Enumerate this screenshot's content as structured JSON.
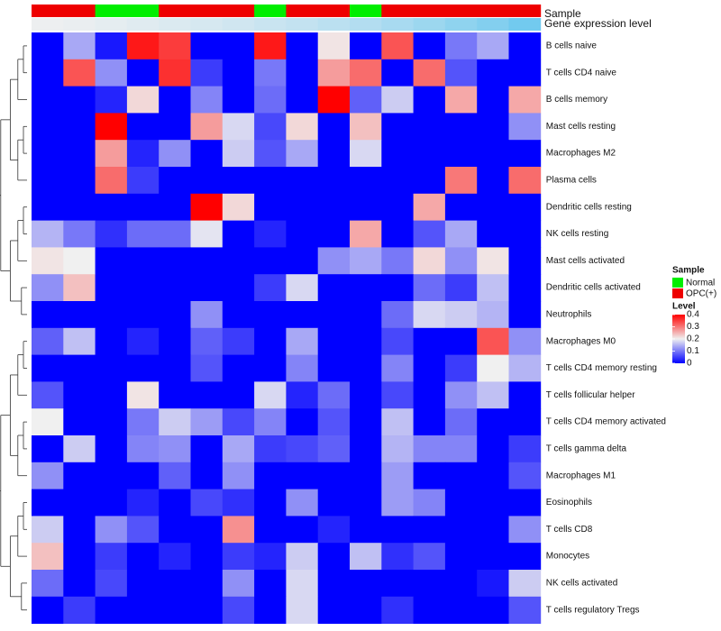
{
  "chart_data": {
    "type": "heatmap",
    "title": "",
    "annotation_rows": [
      "Sample",
      "Gene expression level"
    ],
    "sample_groups": [
      "OPC(+)",
      "OPC(+)",
      "Normal",
      "Normal",
      "OPC(+)",
      "OPC(+)",
      "OPC(+)",
      "Normal",
      "OPC(+)",
      "OPC(+)",
      "Normal",
      "OPC(+)",
      "OPC(+)",
      "OPC(+)",
      "OPC(+)",
      "OPC(+)"
    ],
    "expression_level": [
      0.02,
      0.04,
      0.07,
      0.1,
      0.13,
      0.16,
      0.2,
      0.24,
      0.28,
      0.33,
      0.38,
      0.45,
      0.52,
      0.6,
      0.68,
      0.78
    ],
    "rows": [
      "B cells naive",
      "T cells CD4 naive",
      "B cells memory",
      "Mast cells resting",
      "Macrophages M2",
      "Plasma cells",
      "Dendritic cells resting",
      "NK cells resting",
      "Mast cells activated",
      "Dendritic cells activated",
      "Neutrophils",
      "Macrophages M0",
      "T cells CD4 memory resting",
      "T cells follicular helper",
      "T cells CD4 memory activated",
      "T cells gamma delta",
      "Macrophages M1",
      "Eosinophils",
      "T cells CD8",
      "Monocytes",
      "NK cells activated",
      "T cells regulatory  Tregs"
    ],
    "values": [
      [
        0.0,
        0.14,
        0.02,
        0.38,
        0.35,
        0.0,
        0.0,
        0.38,
        0.0,
        0.21,
        0.0,
        0.33,
        0.0,
        0.1,
        0.14,
        0.0
      ],
      [
        0.0,
        0.33,
        0.12,
        0.0,
        0.36,
        0.05,
        0.0,
        0.1,
        0.0,
        0.27,
        0.31,
        0.0,
        0.31,
        0.07,
        0.0,
        0.0
      ],
      [
        0.0,
        0.0,
        0.03,
        0.22,
        0.0,
        0.11,
        0.0,
        0.09,
        0.0,
        0.4,
        0.08,
        0.17,
        0.0,
        0.26,
        0.0,
        0.26
      ],
      [
        0.0,
        0.0,
        0.4,
        0.0,
        0.0,
        0.27,
        0.18,
        0.06,
        0.22,
        0.0,
        0.24,
        0.0,
        0.0,
        0.0,
        0.0,
        0.12
      ],
      [
        0.0,
        0.0,
        0.27,
        0.03,
        0.12,
        0.0,
        0.17,
        0.07,
        0.14,
        0.0,
        0.18,
        0.0,
        0.0,
        0.0,
        0.0,
        0.0
      ],
      [
        0.0,
        0.0,
        0.31,
        0.05,
        0.0,
        0.0,
        0.0,
        0.0,
        0.0,
        0.0,
        0.0,
        0.0,
        0.0,
        0.3,
        0.0,
        0.31
      ],
      [
        0.0,
        0.0,
        0.0,
        0.0,
        0.0,
        0.4,
        0.22,
        0.0,
        0.0,
        0.0,
        0.0,
        0.0,
        0.26,
        0.0,
        0.0,
        0.0
      ],
      [
        0.15,
        0.1,
        0.04,
        0.09,
        0.09,
        0.19,
        0.0,
        0.03,
        0.0,
        0.0,
        0.26,
        0.0,
        0.07,
        0.14,
        0.0,
        0.0
      ],
      [
        0.21,
        0.2,
        0.0,
        0.0,
        0.0,
        0.0,
        0.0,
        0.0,
        0.0,
        0.12,
        0.14,
        0.1,
        0.22,
        0.12,
        0.21,
        0.0
      ],
      [
        0.12,
        0.24,
        0.0,
        0.0,
        0.0,
        0.0,
        0.0,
        0.05,
        0.18,
        0.0,
        0.0,
        0.0,
        0.09,
        0.05,
        0.16,
        0.0
      ],
      [
        0.0,
        0.0,
        0.0,
        0.0,
        0.0,
        0.12,
        0.0,
        0.0,
        0.0,
        0.0,
        0.0,
        0.09,
        0.18,
        0.17,
        0.15,
        0.0
      ],
      [
        0.08,
        0.16,
        0.0,
        0.03,
        0.0,
        0.08,
        0.05,
        0.0,
        0.14,
        0.0,
        0.0,
        0.06,
        0.0,
        0.0,
        0.33,
        0.12
      ],
      [
        0.0,
        0.0,
        0.0,
        0.0,
        0.0,
        0.07,
        0.0,
        0.0,
        0.11,
        0.0,
        0.0,
        0.11,
        0.0,
        0.05,
        0.2,
        0.15
      ],
      [
        0.07,
        0.0,
        0.0,
        0.21,
        0.0,
        0.0,
        0.0,
        0.18,
        0.03,
        0.09,
        0.0,
        0.06,
        0.0,
        0.12,
        0.16,
        0.0
      ],
      [
        0.2,
        0.0,
        0.0,
        0.1,
        0.17,
        0.13,
        0.06,
        0.11,
        0.0,
        0.07,
        0.0,
        0.16,
        0.0,
        0.09,
        0.0,
        0.0
      ],
      [
        0.0,
        0.17,
        0.0,
        0.11,
        0.12,
        0.0,
        0.14,
        0.05,
        0.06,
        0.08,
        0.0,
        0.15,
        0.11,
        0.11,
        0.0,
        0.05
      ],
      [
        0.12,
        0.0,
        0.0,
        0.0,
        0.08,
        0.0,
        0.12,
        0.0,
        0.0,
        0.0,
        0.0,
        0.13,
        0.0,
        0.0,
        0.0,
        0.07
      ],
      [
        0.0,
        0.0,
        0.0,
        0.03,
        0.0,
        0.06,
        0.04,
        0.0,
        0.12,
        0.0,
        0.0,
        0.13,
        0.11,
        0.0,
        0.0,
        0.0
      ],
      [
        0.17,
        0.0,
        0.12,
        0.07,
        0.0,
        0.0,
        0.28,
        0.0,
        0.0,
        0.03,
        0.0,
        0.0,
        0.0,
        0.0,
        0.0,
        0.12
      ],
      [
        0.24,
        0.0,
        0.05,
        0.0,
        0.03,
        0.0,
        0.05,
        0.03,
        0.17,
        0.0,
        0.16,
        0.04,
        0.07,
        0.0,
        0.0,
        0.0
      ],
      [
        0.09,
        0.0,
        0.06,
        0.0,
        0.0,
        0.0,
        0.12,
        0.0,
        0.18,
        0.0,
        0.0,
        0.0,
        0.0,
        0.0,
        0.02,
        0.17
      ],
      [
        0.0,
        0.05,
        0.0,
        0.0,
        0.0,
        0.0,
        0.06,
        0.0,
        0.18,
        0.0,
        0.0,
        0.04,
        0.0,
        0.0,
        0.0,
        0.07
      ]
    ],
    "color_scale": {
      "min": 0,
      "max": 0.4,
      "stops": [
        "#0000ff",
        "#f0f0f0",
        "#ff0000"
      ]
    },
    "legends": {
      "sample": {
        "title": "Sample",
        "entries": [
          {
            "label": "Normal",
            "color": "#00ee00"
          },
          {
            "label": "OPC(+)",
            "color": "#ee0000"
          }
        ]
      },
      "level": {
        "title": "Level",
        "ticks": [
          "0.4",
          "0.3",
          "0.2",
          "0.1",
          "0"
        ],
        "tick_values": [
          0.4,
          0.3,
          0.2,
          0.1,
          0
        ]
      }
    },
    "row_dendrogram": true,
    "legend_position": "right"
  }
}
